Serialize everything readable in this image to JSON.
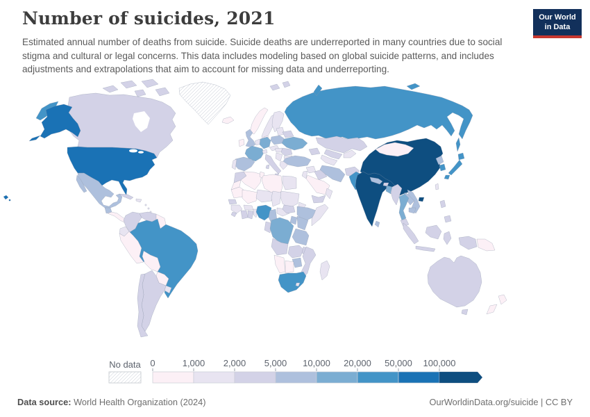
{
  "header": {
    "title": "Number of suicides, 2021",
    "subtitle": "Estimated annual number of deaths from suicide. Suicide deaths are underreported in many countries due to social stigma and cultural or legal concerns. This data includes modeling based on global suicide patterns, and includes adjustments and extrapolations that aim to account for missing data and underreporting.",
    "logo": {
      "line1": "Our World",
      "line2": "in Data",
      "bg_color": "#12305b",
      "accent_color": "#c7372f"
    }
  },
  "chart_data": {
    "type": "choropleth-map",
    "title": "Number of suicides, 2021",
    "unit": "suicide deaths per country, 2021",
    "legend": {
      "no_data_label": "No data",
      "no_data_pattern": "diagonal-hatch",
      "bin_edges": [
        "0",
        "1,000",
        "2,000",
        "5,000",
        "10,000",
        "20,000",
        "50,000",
        "100,000"
      ],
      "colors": [
        "#fcf0f6",
        "#e8e4f1",
        "#d3d2e7",
        "#aec0dd",
        "#7badd2",
        "#4394c7",
        "#1a72b5",
        "#0e4e80"
      ],
      "open_ended_arrow": true
    },
    "countries": {
      "greenland": "no-data",
      "canada": 2,
      "united-states": 6,
      "mexico": 3,
      "guatemala": 3,
      "central-america": 0,
      "cuba": 2,
      "hispaniola": 1,
      "caribbean": 1,
      "colombia": 2,
      "venezuela": 2,
      "guyanas": 0,
      "ecuador": 1,
      "peru": 0,
      "brazil": 5,
      "bolivia": 0,
      "paraguay": 0,
      "uruguay": 1,
      "argentina": 2,
      "chile": 2,
      "iceland": 0,
      "norway": 0,
      "sweden": 1,
      "finland": 1,
      "denmark": 0,
      "united-kingdom": 3,
      "ireland": 0,
      "benelux": 1,
      "germany": 4,
      "france": 4,
      "spain": 3,
      "portugal": 1,
      "italy": 2,
      "switzerland": 1,
      "austria-czechia": 1,
      "hungary-slovakia": 1,
      "poland": 3,
      "baltics": 1,
      "belarus": 2,
      "ukraine": 4,
      "romania": 2,
      "balkans": 1,
      "greece": 1,
      "bulgaria": 1,
      "svalbard": 2,
      "russia": 5,
      "kazakhstan": 2,
      "uzbekistan": 2,
      "turkmenistan": 1,
      "kyrgyzstan-tajikistan": 1,
      "caucasus": 2,
      "turkey": 3,
      "syria": 1,
      "jordan-israel": 1,
      "iraq": 2,
      "iran": 3,
      "saudi-arabia": 0,
      "yemen": 2,
      "oman": 1,
      "afghanistan": 2,
      "pakistan": 5,
      "india": 7,
      "nepal": 3,
      "bhutan": 2,
      "bangladesh": 4,
      "sri-lanka": 3,
      "china": 7,
      "mongolia": 0,
      "taiwan": 1,
      "north-korea": 3,
      "south-korea": 5,
      "japan": 5,
      "myanmar": 2,
      "thailand": 4,
      "laos": 3,
      "vietnam": 3,
      "cambodia": 3,
      "malaysia": 2,
      "philippines": 2,
      "indonesia": 2,
      "papua-new-guinea": 0,
      "australia": 2,
      "new-zealand": 0,
      "morocco": 2,
      "western-sahara": 0,
      "algeria": 0,
      "tunisia": 0,
      "libya": 0,
      "egypt": 1,
      "mauritania": 0,
      "mali": 0,
      "niger": 1,
      "chad": 1,
      "sudan": 1,
      "eritrea": 1,
      "senegal": 2,
      "guinea": 1,
      "sierra-leone": 2,
      "cote-divoire": 2,
      "ghana": 2,
      "burkina-faso": 1,
      "togo-benin": 1,
      "nigeria": 5,
      "cameroon": 3,
      "central-african-republic": 1,
      "south-sudan": 2,
      "ethiopia": 3,
      "somalia": 1,
      "kenya": 3,
      "uganda": 3,
      "gabon-congo": 2,
      "dr-congo": 4,
      "tanzania": 3,
      "angola": 2,
      "zambia": 2,
      "malawi": 2,
      "mozambique": 2,
      "zimbabwe": 3,
      "botswana": 0,
      "namibia": 0,
      "south-africa": 5,
      "lesotho": 1,
      "madagascar": 1
    }
  },
  "footer": {
    "source_label": "Data source:",
    "source_value": " World Health Organization (2024)",
    "right_text": "OurWorldinData.org/suicide | CC BY"
  }
}
